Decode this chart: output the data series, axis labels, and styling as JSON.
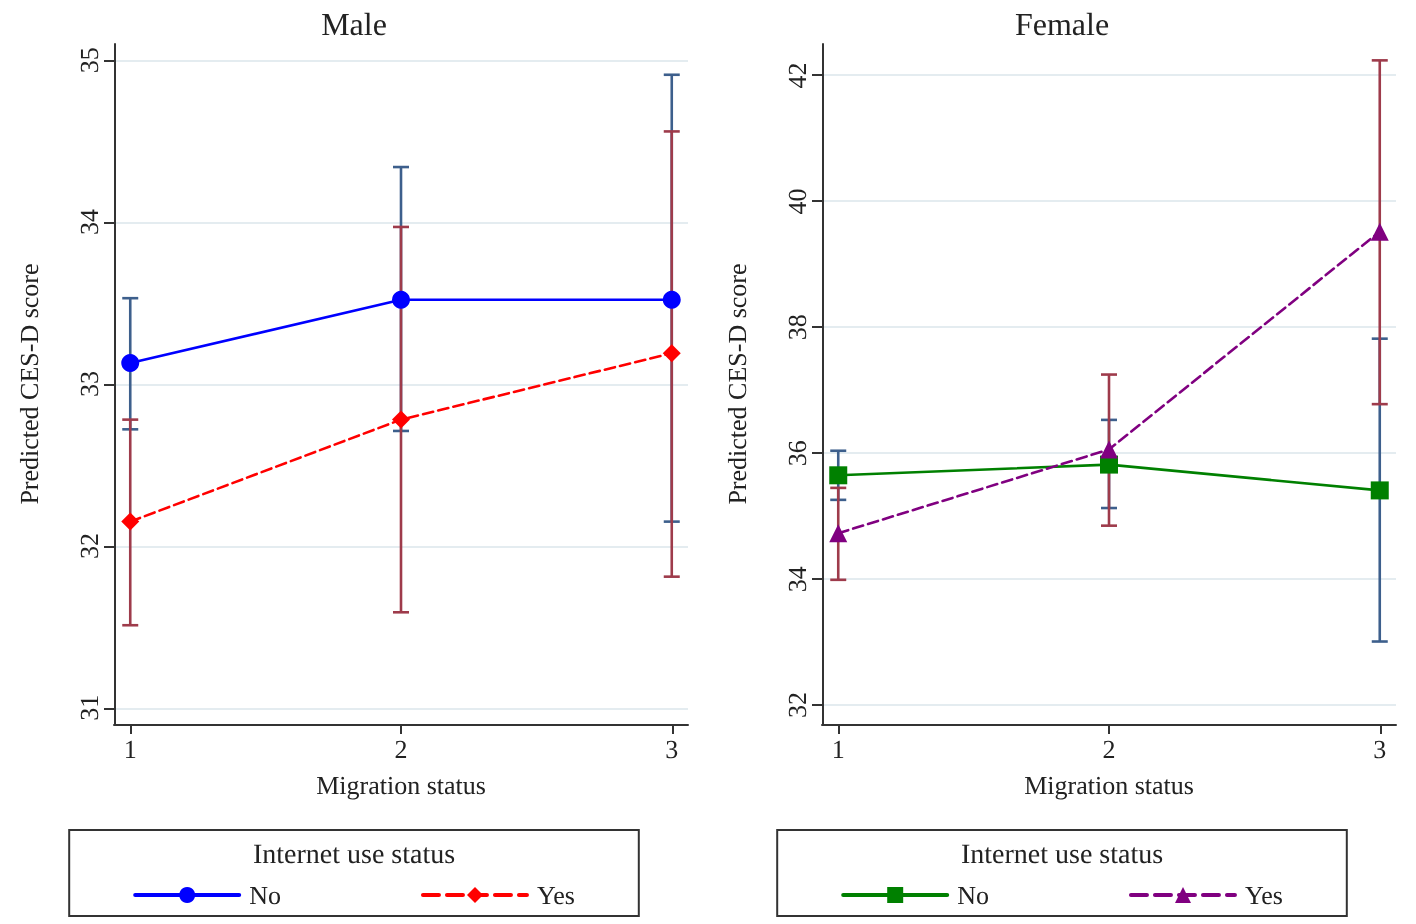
{
  "chart_data": [
    {
      "type": "line",
      "title": "Male",
      "xlabel": "Migration status",
      "ylabel": "Predicted CES-D score",
      "legend_title": "Internet use status",
      "x": [
        1,
        2,
        3
      ],
      "xlim": [
        0.94,
        3.06
      ],
      "xticks": [
        1,
        2,
        3
      ],
      "ylim": [
        30.9,
        35.1
      ],
      "yticks": [
        31,
        32,
        33,
        34,
        35
      ],
      "grid": "y",
      "legend": "bottom",
      "series": [
        {
          "name": "No",
          "color": "#0000ff",
          "marker": "circle",
          "line_style": "solid",
          "values": [
            33.13,
            33.52,
            33.52
          ],
          "errors": [
            [
              32.72,
              33.53
            ],
            [
              32.71,
              34.34
            ],
            [
              32.15,
              34.91
            ]
          ]
        },
        {
          "name": "Yes",
          "color": "#ff0000",
          "marker": "diamond",
          "line_style": "dashed",
          "values": [
            32.15,
            32.78,
            33.19
          ],
          "errors": [
            [
              31.51,
              32.78
            ],
            [
              31.59,
              33.97
            ],
            [
              31.81,
              34.56
            ]
          ]
        }
      ]
    },
    {
      "type": "line",
      "title": "Female",
      "xlabel": "Migration status",
      "ylabel": "Predicted CES-D score",
      "legend_title": "Internet use status",
      "x": [
        1,
        2,
        3
      ],
      "xlim": [
        0.94,
        3.06
      ],
      "xticks": [
        1,
        2,
        3
      ],
      "ylim": [
        31.7,
        42.5
      ],
      "yticks": [
        32,
        34,
        36,
        38,
        40,
        42
      ],
      "grid": "y",
      "legend": "bottom",
      "series": [
        {
          "name": "No",
          "color": "#008000",
          "marker": "square",
          "line_style": "solid",
          "values": [
            35.65,
            35.82,
            35.41
          ],
          "errors": [
            [
              35.26,
              36.04
            ],
            [
              35.13,
              36.53
            ],
            [
              33.01,
              37.82
            ]
          ]
        },
        {
          "name": "Yes",
          "color": "#800080",
          "marker": "triangle",
          "line_style": "dashed",
          "values": [
            34.73,
            36.06,
            39.52
          ],
          "errors": [
            [
              33.99,
              35.45
            ],
            [
              34.85,
              37.25
            ],
            [
              36.78,
              42.24
            ]
          ]
        }
      ]
    }
  ]
}
